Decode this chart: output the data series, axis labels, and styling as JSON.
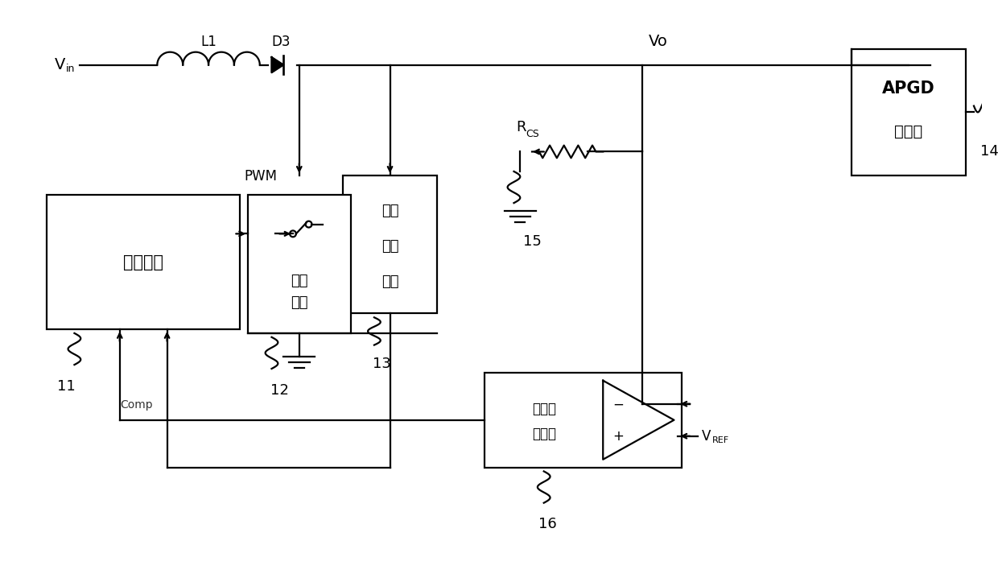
{
  "bg_color": "#ffffff",
  "line_color": "#000000",
  "lw": 1.6,
  "fig_w": 12.4,
  "fig_h": 7.18,
  "labels": {
    "Vin": "V",
    "Vin_sub": "in",
    "L1": "L1",
    "D3": "D3",
    "Vo": "Vo",
    "RCS_main": "R",
    "RCS_sub": "CS",
    "APGD1": "APGD",
    "APGD2": "激发源",
    "ctrl": "控制芯片",
    "sw1": "开关",
    "sw2": "电路",
    "vs1": "电压",
    "vs2": "采样",
    "vs3": "电路",
    "cmp1": "比较反",
    "cmp2": "馈电路",
    "PWM": "PWM",
    "Comp": "Comp",
    "VREF_main": "V",
    "VREF_sub": "REF",
    "n11": "11",
    "n12": "12",
    "n13": "13",
    "n14": "14",
    "n15": "15",
    "n16": "16"
  }
}
